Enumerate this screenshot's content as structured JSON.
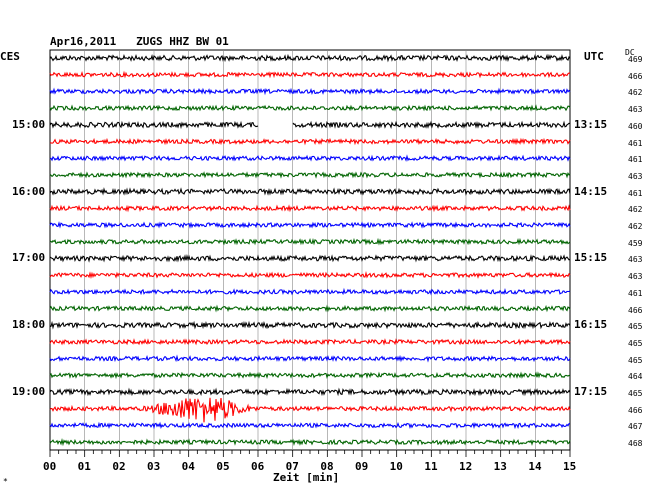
{
  "chart_data": {
    "type": "line",
    "title": "Apr16,2011   ZUGS HHZ BW 01",
    "left_axis_label": "CES",
    "right_axis_label": "UTC",
    "dc_label": "DC",
    "xlabel": "Zeit [min]",
    "xlim": [
      0,
      15
    ],
    "x_ticks": [
      "00",
      "01",
      "02",
      "03",
      "04",
      "05",
      "06",
      "07",
      "08",
      "09",
      "10",
      "11",
      "12",
      "13",
      "14",
      "15"
    ],
    "left_hour_labels": [
      "15:00",
      "16:00",
      "17:00",
      "18:00",
      "19:00"
    ],
    "right_time_labels": [
      "13:15",
      "14:15",
      "15:15",
      "16:15",
      "17:15"
    ],
    "dc_values": [
      "469",
      "466",
      "462",
      "463",
      "460",
      "461",
      "461",
      "463",
      "461",
      "462",
      "462",
      "459",
      "463",
      "463",
      "461",
      "466",
      "465",
      "465",
      "465",
      "464",
      "465",
      "466",
      "467",
      "468"
    ],
    "trace_colors": [
      "#000000",
      "#ff0000",
      "#0000ff",
      "#006400"
    ],
    "traces_per_hour": 4,
    "trace_count": 24,
    "gap": {
      "trace": 4,
      "start_min": 6.0,
      "end_min": 7.0
    },
    "event": {
      "trace": 21,
      "start_min": 2.7,
      "end_min": 6.0,
      "peak_min": 4.6
    },
    "grid": true,
    "footer_mark": "*"
  }
}
